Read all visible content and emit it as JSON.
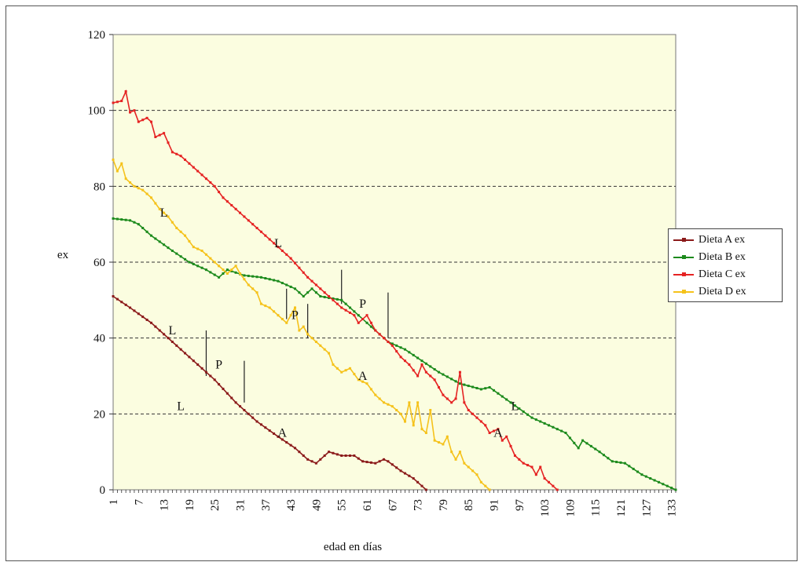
{
  "chart_data": {
    "type": "line",
    "ylabel": "ex",
    "xlabel": "edad en días",
    "ylim": [
      0,
      120
    ],
    "xlim": [
      1,
      134
    ],
    "yticks": [
      "0",
      "20",
      "40",
      "60",
      "80",
      "100",
      "120"
    ],
    "xticks": [
      "1",
      "7",
      "13",
      "19",
      "25",
      "31",
      "37",
      "43",
      "49",
      "55",
      "61",
      "67",
      "73",
      "79",
      "85",
      "91",
      "97",
      "103",
      "109",
      "115",
      "121",
      "127",
      "133"
    ],
    "grid": "horizontal dashed",
    "legend_position": "right",
    "plot_background": "#fbfde0",
    "series": [
      {
        "name": "Dieta A ex",
        "color": "#8b1a1a",
        "points": [
          [
            1,
            51
          ],
          [
            5,
            48
          ],
          [
            10,
            44
          ],
          [
            15,
            39
          ],
          [
            20,
            34
          ],
          [
            25,
            29
          ],
          [
            30,
            23
          ],
          [
            32,
            21
          ],
          [
            35,
            18
          ],
          [
            40,
            14
          ],
          [
            44,
            11
          ],
          [
            47,
            8
          ],
          [
            49,
            7
          ],
          [
            50,
            8
          ],
          [
            52,
            10
          ],
          [
            55,
            9
          ],
          [
            58,
            9
          ],
          [
            60,
            7.5
          ],
          [
            63,
            7
          ],
          [
            65,
            8
          ],
          [
            66,
            7.5
          ],
          [
            69,
            5
          ],
          [
            72,
            3
          ],
          [
            74,
            1
          ],
          [
            75,
            0
          ]
        ]
      },
      {
        "name": "Dieta B ex",
        "color": "#1c8a1c",
        "points": [
          [
            1,
            71.5
          ],
          [
            5,
            71
          ],
          [
            7,
            70
          ],
          [
            10,
            67
          ],
          [
            15,
            63
          ],
          [
            19,
            60
          ],
          [
            23,
            58
          ],
          [
            26,
            56
          ],
          [
            28,
            58
          ],
          [
            32,
            56.5
          ],
          [
            36,
            56
          ],
          [
            40,
            55
          ],
          [
            44,
            53
          ],
          [
            46,
            51
          ],
          [
            48,
            53
          ],
          [
            50,
            51
          ],
          [
            55,
            50
          ],
          [
            58,
            47
          ],
          [
            62,
            43
          ],
          [
            66,
            39
          ],
          [
            70,
            37
          ],
          [
            74,
            34
          ],
          [
            78,
            31
          ],
          [
            83,
            28
          ],
          [
            88,
            26.5
          ],
          [
            90,
            27
          ],
          [
            95,
            23
          ],
          [
            100,
            19
          ],
          [
            104,
            17
          ],
          [
            108,
            15
          ],
          [
            111,
            11
          ],
          [
            112,
            13
          ],
          [
            116,
            10
          ],
          [
            119,
            7.5
          ],
          [
            122,
            7
          ],
          [
            126,
            4
          ],
          [
            130,
            2
          ],
          [
            134,
            0
          ]
        ]
      },
      {
        "name": "Dieta C ex",
        "color": "#e52222",
        "points": [
          [
            1,
            102
          ],
          [
            3,
            102.5
          ],
          [
            4,
            105
          ],
          [
            5,
            99.5
          ],
          [
            6,
            100
          ],
          [
            7,
            97
          ],
          [
            9,
            98
          ],
          [
            10,
            97
          ],
          [
            11,
            93
          ],
          [
            13,
            94
          ],
          [
            15,
            89
          ],
          [
            17,
            88
          ],
          [
            19,
            86
          ],
          [
            21,
            84
          ],
          [
            25,
            80
          ],
          [
            27,
            77
          ],
          [
            31,
            73
          ],
          [
            35,
            69
          ],
          [
            39,
            65
          ],
          [
            43,
            61
          ],
          [
            47,
            56
          ],
          [
            49,
            54
          ],
          [
            51,
            52
          ],
          [
            53,
            50
          ],
          [
            55,
            48
          ],
          [
            58,
            46
          ],
          [
            59,
            44
          ],
          [
            61,
            46
          ],
          [
            63,
            42
          ],
          [
            65,
            40
          ],
          [
            67,
            38
          ],
          [
            69,
            35
          ],
          [
            71,
            33
          ],
          [
            73,
            30
          ],
          [
            74,
            33
          ],
          [
            75,
            31
          ],
          [
            77,
            29
          ],
          [
            79,
            25
          ],
          [
            81,
            23
          ],
          [
            82,
            24
          ],
          [
            83,
            31
          ],
          [
            84,
            23
          ],
          [
            85,
            21
          ],
          [
            87,
            19
          ],
          [
            89,
            17
          ],
          [
            90,
            15
          ],
          [
            92,
            16
          ],
          [
            93,
            13
          ],
          [
            94,
            14
          ],
          [
            96,
            9
          ],
          [
            98,
            7
          ],
          [
            99,
            6.5
          ],
          [
            100,
            6
          ],
          [
            101,
            4
          ],
          [
            102,
            6
          ],
          [
            103,
            3
          ],
          [
            105,
            1
          ],
          [
            106,
            0
          ]
        ]
      },
      {
        "name": "Dieta D ex",
        "color": "#f5c21b",
        "points": [
          [
            1,
            87
          ],
          [
            2,
            84
          ],
          [
            3,
            86
          ],
          [
            4,
            82
          ],
          [
            6,
            80
          ],
          [
            8,
            79
          ],
          [
            10,
            77
          ],
          [
            12,
            74
          ],
          [
            14,
            72
          ],
          [
            16,
            69
          ],
          [
            18,
            67
          ],
          [
            20,
            64
          ],
          [
            22,
            63
          ],
          [
            24,
            61
          ],
          [
            26,
            59
          ],
          [
            28,
            57
          ],
          [
            30,
            59
          ],
          [
            31,
            57
          ],
          [
            33,
            54
          ],
          [
            35,
            52
          ],
          [
            36,
            49
          ],
          [
            38,
            48
          ],
          [
            40,
            46
          ],
          [
            42,
            44
          ],
          [
            44,
            48
          ],
          [
            45,
            42
          ],
          [
            46,
            43
          ],
          [
            47,
            41
          ],
          [
            48,
            40
          ],
          [
            50,
            38
          ],
          [
            52,
            36
          ],
          [
            53,
            33
          ],
          [
            55,
            31
          ],
          [
            57,
            32
          ],
          [
            59,
            29
          ],
          [
            61,
            28
          ],
          [
            63,
            25
          ],
          [
            65,
            23
          ],
          [
            67,
            22
          ],
          [
            69,
            20
          ],
          [
            70,
            18
          ],
          [
            71,
            23
          ],
          [
            72,
            17
          ],
          [
            73,
            23
          ],
          [
            74,
            16
          ],
          [
            75,
            15
          ],
          [
            76,
            21
          ],
          [
            77,
            13
          ],
          [
            79,
            12
          ],
          [
            80,
            14
          ],
          [
            81,
            10
          ],
          [
            82,
            8
          ],
          [
            83,
            10
          ],
          [
            84,
            7
          ],
          [
            86,
            5
          ],
          [
            87,
            4
          ],
          [
            88,
            2
          ],
          [
            90,
            0
          ]
        ]
      }
    ],
    "annotations": [
      {
        "text": "L",
        "x": 13,
        "y": 73
      },
      {
        "text": "L",
        "x": 40,
        "y": 65
      },
      {
        "text": "L",
        "x": 15,
        "y": 42
      },
      {
        "text": "P",
        "x": 26,
        "y": 33
      },
      {
        "text": "L",
        "x": 17,
        "y": 22
      },
      {
        "text": "A",
        "x": 41,
        "y": 15
      },
      {
        "text": "P",
        "x": 44,
        "y": 46
      },
      {
        "text": "P",
        "x": 60,
        "y": 49
      },
      {
        "text": "A",
        "x": 60,
        "y": 30
      },
      {
        "text": "A",
        "x": 92,
        "y": 15
      },
      {
        "text": "L",
        "x": 96,
        "y": 22
      }
    ],
    "stage_markers": [
      {
        "x": 23,
        "y1": 30,
        "y2": 42
      },
      {
        "x": 32,
        "y1": 23,
        "y2": 34
      },
      {
        "x": 42,
        "y1": 45,
        "y2": 53
      },
      {
        "x": 47,
        "y1": 40,
        "y2": 49
      },
      {
        "x": 55,
        "y1": 49,
        "y2": 58
      },
      {
        "x": 66,
        "y1": 40,
        "y2": 52
      }
    ]
  }
}
